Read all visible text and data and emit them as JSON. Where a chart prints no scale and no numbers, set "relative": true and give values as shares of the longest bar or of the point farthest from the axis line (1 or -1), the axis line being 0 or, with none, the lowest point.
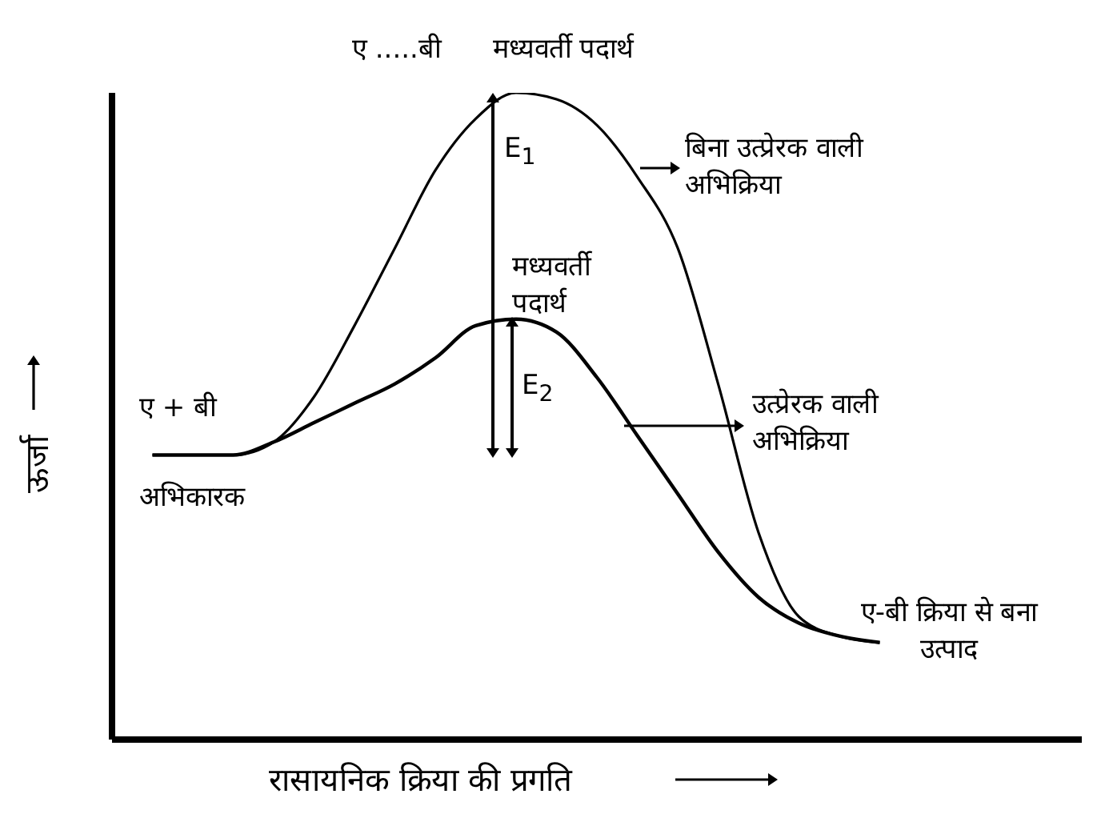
{
  "chart_data": {
    "type": "line",
    "relative": true,
    "xlabel": "रासायनिक क्रिया की प्रगति",
    "ylabel": "ऊर्जा",
    "categories": [
      null,
      null,
      null,
      null,
      null,
      null,
      null,
      null,
      null,
      null,
      null,
      null,
      null,
      null,
      null,
      null,
      null,
      null,
      null,
      null,
      null,
      null,
      null,
      null,
      null
    ],
    "series": [
      {
        "color": "#000000",
        "values": [
          null,
          0.44,
          0.44,
          0.44,
          0.46,
          0.53,
          0.64,
          0.76,
          0.88,
          0.96,
          1.0,
          0.99,
          0.95,
          0.87,
          0.76,
          0.55,
          0.32,
          0.19,
          0.16,
          0.15,
          null,
          null,
          null,
          null,
          null
        ]
      },
      {
        "color": "#000000",
        "values": [
          null,
          0.44,
          0.44,
          0.44,
          0.46,
          0.49,
          0.52,
          0.55,
          0.59,
          0.64,
          0.65,
          0.63,
          0.56,
          0.47,
          0.38,
          0.29,
          0.22,
          0.18,
          0.16,
          0.15,
          null,
          null,
          null,
          null,
          null
        ]
      }
    ],
    "annotations": [
      "ए .....बी      मध्यवर्ती पदार्थ",
      "E$_{1}$",
      "मध्यवर्ती पदार्थ",
      "E$_{2}$",
      "ए + बी",
      "अभिकारक",
      "ए-बी क्रिया से बना उत्पाद",
      "बिना उत्प्रेरक वाली अभिक्रिया",
      "उत्प्रेरक वाली अभिक्रिया"
    ],
    "grid": false,
    "legend": false
  }
}
